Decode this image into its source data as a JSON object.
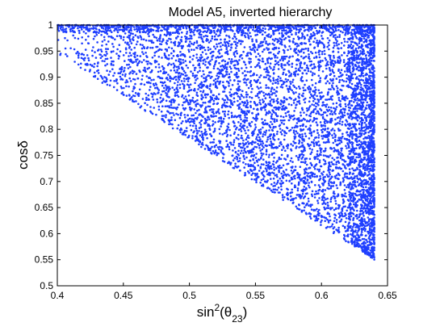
{
  "chart_data": {
    "type": "scatter",
    "title": "Model A5, inverted hierarchy",
    "xlabel": "sin²(θ₂₃)",
    "ylabel": "cosδ",
    "xlim": [
      0.4,
      0.65
    ],
    "ylim": [
      0.5,
      1.0
    ],
    "xticks": [
      "0.4",
      "0.45",
      "0.5",
      "0.55",
      "0.6",
      "0.65"
    ],
    "yticks": [
      "0.5",
      "0.55",
      "0.6",
      "0.65",
      "0.7",
      "0.75",
      "0.8",
      "0.85",
      "0.9",
      "0.95",
      "1"
    ],
    "grid": false,
    "legend": "none",
    "point_color": "#1f3fff",
    "region": {
      "description_vertices": [
        [
          0.4,
          1.0
        ],
        [
          0.4,
          0.945
        ],
        [
          0.64,
          0.55
        ],
        [
          0.64,
          1.0
        ]
      ],
      "x_min": 0.4,
      "x_max": 0.64,
      "y_max": 1.0,
      "lower_boundary": [
        [
          0.4,
          0.945
        ],
        [
          0.64,
          0.55
        ]
      ]
    }
  }
}
